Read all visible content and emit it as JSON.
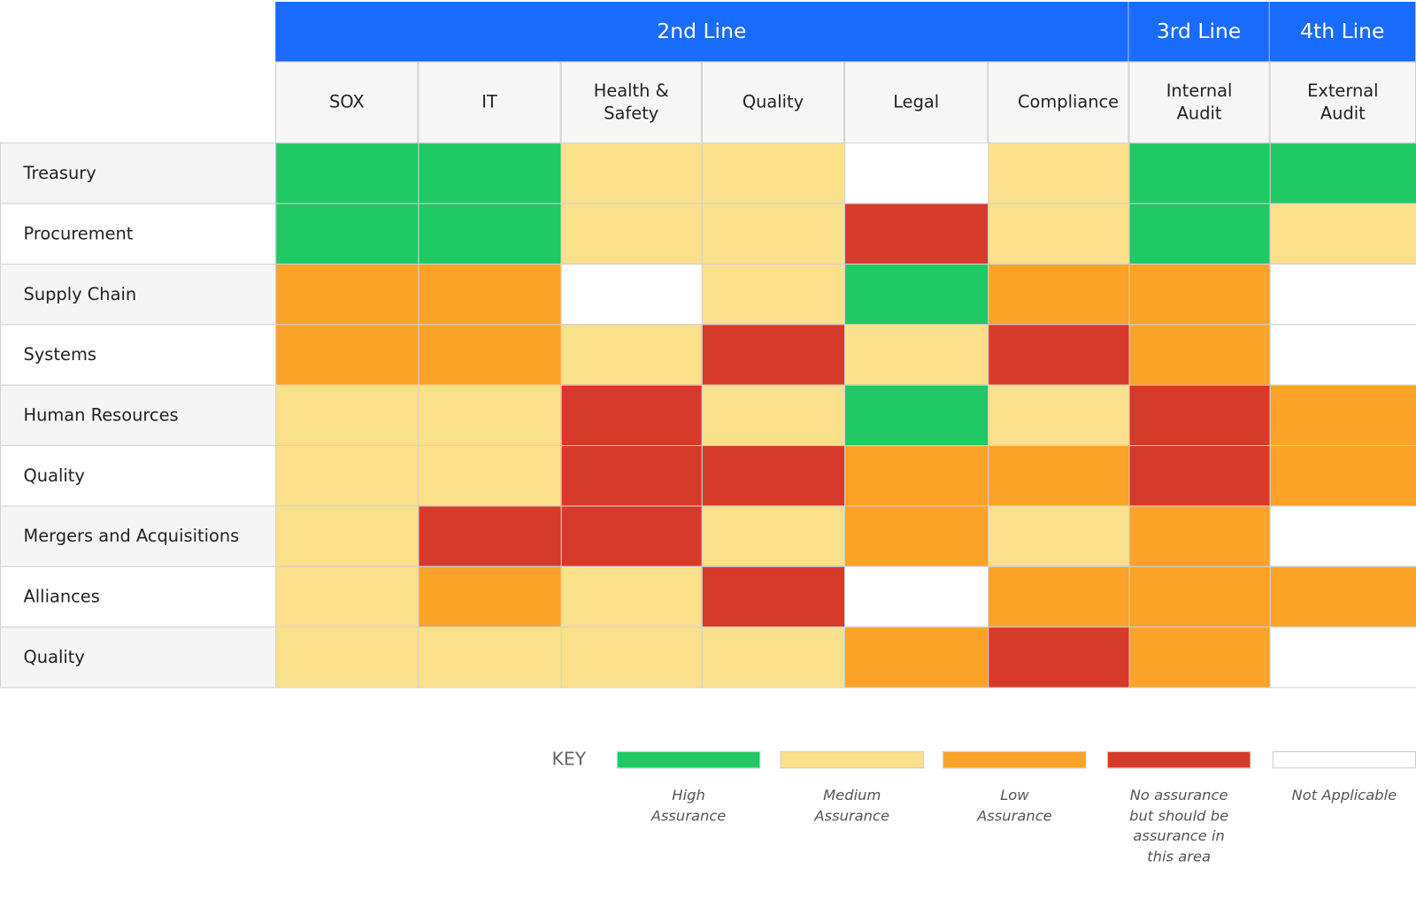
{
  "groups": [
    {
      "label": "2nd Line",
      "columns": [
        "SOX",
        "IT",
        "Health & Safety",
        "Quality",
        "Legal",
        "Compliance"
      ]
    },
    {
      "label": "3rd Line",
      "columns": [
        "Internal Audit"
      ]
    },
    {
      "label": "4th Line",
      "columns": [
        "External Audit"
      ]
    }
  ],
  "header_color": "#1a6bff",
  "rows": [
    {
      "label": "Treasury",
      "cells": [
        0,
        0,
        1,
        1,
        4,
        1,
        0,
        0
      ]
    },
    {
      "label": "Procurement",
      "cells": [
        0,
        0,
        1,
        1,
        3,
        1,
        0,
        1
      ]
    },
    {
      "label": "Supply Chain",
      "cells": [
        2,
        2,
        4,
        1,
        0,
        2,
        2,
        4
      ]
    },
    {
      "label": "Systems",
      "cells": [
        2,
        2,
        1,
        3,
        1,
        3,
        2,
        4
      ]
    },
    {
      "label": "Human Resources",
      "cells": [
        1,
        1,
        3,
        1,
        0,
        1,
        3,
        2
      ]
    },
    {
      "label": "Quality",
      "cells": [
        1,
        1,
        3,
        3,
        2,
        2,
        3,
        2
      ]
    },
    {
      "label": "Mergers and Acquisitions",
      "cells": [
        1,
        3,
        3,
        1,
        2,
        1,
        2,
        4
      ]
    },
    {
      "label": "Alliances",
      "cells": [
        1,
        2,
        1,
        3,
        4,
        2,
        2,
        2
      ]
    },
    {
      "label": "Quality",
      "cells": [
        1,
        1,
        1,
        1,
        2,
        3,
        2,
        4
      ]
    }
  ],
  "key": {
    "title": "KEY",
    "entries": [
      {
        "label": "High Assurance",
        "color": "#20c963"
      },
      {
        "label": "Medium Assurance",
        "color": "#fae08a"
      },
      {
        "label": "Low Assurance",
        "color": "#fba229"
      },
      {
        "label": "No assurance but should be assurance in this area",
        "color": "#d63a2a"
      },
      {
        "label": "Not Applicable",
        "color": "#ffffff"
      }
    ]
  }
}
